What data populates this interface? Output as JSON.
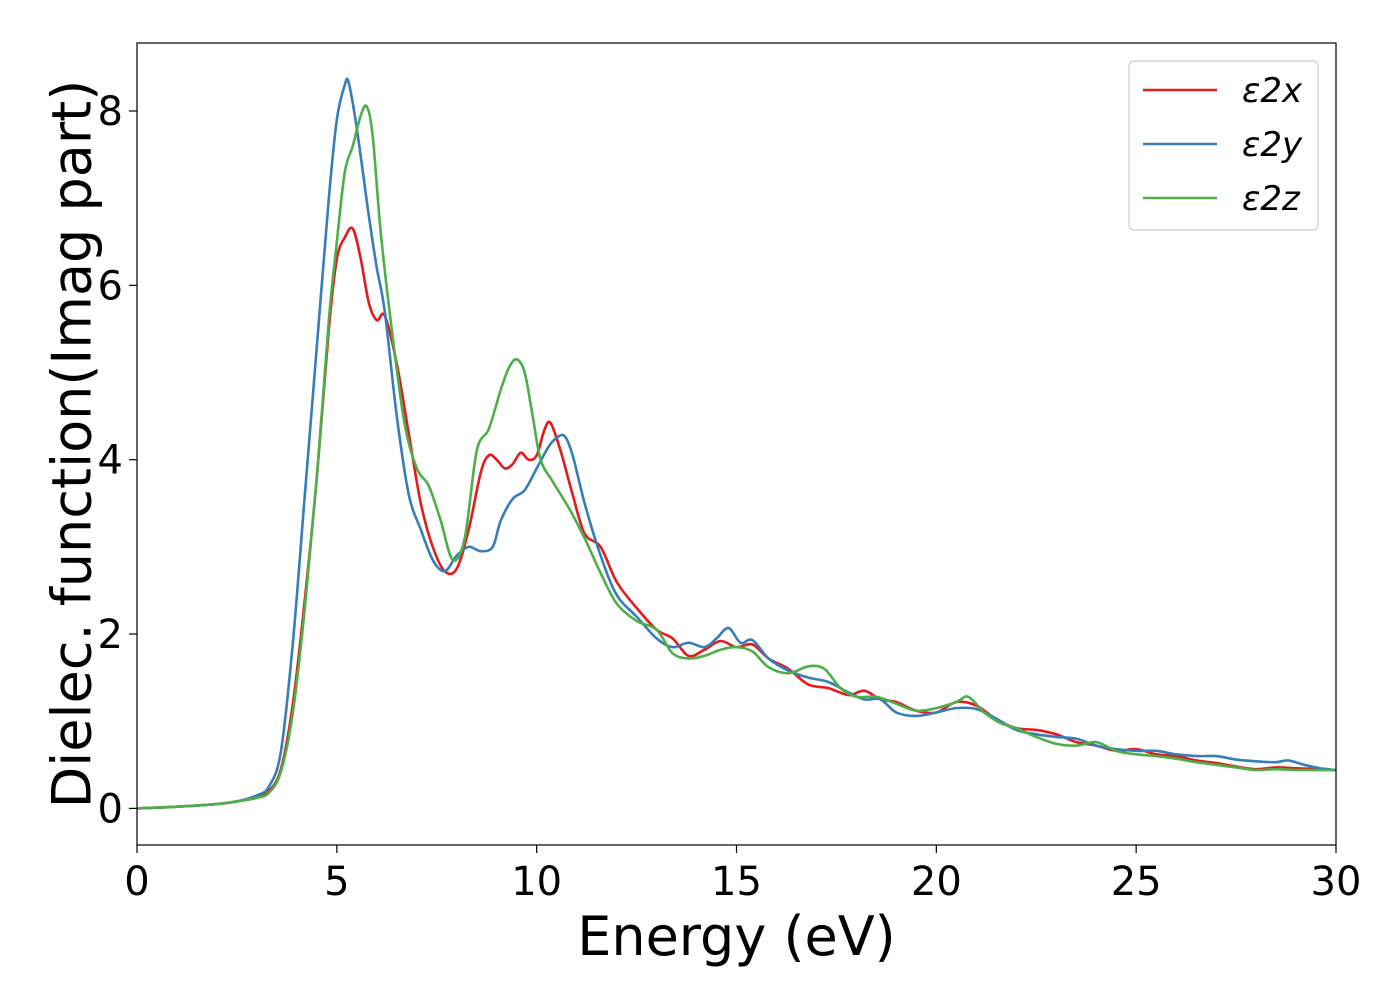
{
  "chart_data": {
    "type": "line",
    "title": "",
    "xlabel": "Energy (eV)",
    "ylabel": "Dielec. function(Imag part)",
    "xlim": [
      0,
      30
    ],
    "ylim": [
      -0.42,
      8.78
    ],
    "xticks": [
      0,
      5,
      10,
      15,
      20,
      25,
      30
    ],
    "yticks": [
      0,
      2,
      4,
      6,
      8
    ],
    "grid": false,
    "legend_position": "top-right",
    "series": [
      {
        "name": "ε2x",
        "color": "#e41a1c",
        "x": [
          0,
          1,
          2,
          2.5,
          3,
          3.3,
          3.6,
          3.9,
          4.2,
          4.5,
          4.8,
          5.0,
          5.2,
          5.4,
          5.6,
          5.8,
          6.0,
          6.2,
          6.5,
          6.8,
          7.1,
          7.4,
          7.7,
          8.0,
          8.3,
          8.6,
          8.8,
          9.0,
          9.2,
          9.4,
          9.6,
          9.8,
          10.0,
          10.2,
          10.35,
          10.6,
          10.9,
          11.2,
          11.6,
          12.0,
          12.5,
          13.0,
          13.4,
          13.8,
          14.2,
          14.6,
          15.0,
          15.4,
          15.8,
          16.3,
          16.8,
          17.3,
          17.8,
          18.2,
          18.6,
          19.0,
          19.5,
          20.0,
          20.5,
          21.0,
          21.5,
          22.0,
          22.5,
          23.0,
          23.5,
          24.0,
          24.5,
          25.0,
          25.5,
          26.0,
          26.5,
          27.0,
          27.5,
          28.0,
          28.5,
          29.0,
          29.5,
          30.0
        ],
        "y": [
          0,
          0.02,
          0.05,
          0.08,
          0.13,
          0.2,
          0.45,
          1.2,
          2.4,
          3.8,
          5.5,
          6.3,
          6.55,
          6.65,
          6.3,
          5.8,
          5.6,
          5.65,
          5.1,
          4.3,
          3.5,
          3.0,
          2.72,
          2.75,
          3.2,
          3.85,
          4.05,
          4.0,
          3.9,
          3.95,
          4.08,
          4.0,
          4.05,
          4.35,
          4.42,
          4.1,
          3.6,
          3.15,
          3.0,
          2.6,
          2.3,
          2.05,
          1.95,
          1.75,
          1.82,
          1.92,
          1.85,
          1.88,
          1.72,
          1.6,
          1.42,
          1.38,
          1.3,
          1.35,
          1.25,
          1.22,
          1.12,
          1.1,
          1.22,
          1.18,
          1.02,
          0.92,
          0.9,
          0.85,
          0.76,
          0.72,
          0.66,
          0.68,
          0.62,
          0.6,
          0.55,
          0.52,
          0.48,
          0.45,
          0.47,
          0.46,
          0.45,
          0.44
        ]
      },
      {
        "name": "ε2y",
        "color": "#377eb8",
        "x": [
          0,
          1,
          2,
          2.5,
          3,
          3.3,
          3.6,
          3.9,
          4.2,
          4.5,
          4.8,
          5.0,
          5.2,
          5.3,
          5.5,
          5.8,
          6.0,
          6.2,
          6.5,
          6.8,
          7.1,
          7.4,
          7.7,
          8.0,
          8.3,
          8.6,
          8.9,
          9.1,
          9.4,
          9.7,
          10.0,
          10.3,
          10.5,
          10.7,
          10.9,
          11.2,
          11.6,
          12.0,
          12.5,
          13.0,
          13.4,
          13.8,
          14.2,
          14.5,
          14.8,
          15.1,
          15.4,
          15.8,
          16.3,
          16.8,
          17.3,
          17.8,
          18.2,
          18.6,
          19.0,
          19.5,
          20.0,
          20.5,
          21.0,
          21.5,
          22.0,
          22.5,
          23.0,
          23.5,
          24.0,
          24.5,
          25.0,
          25.5,
          26.0,
          26.5,
          27.0,
          27.5,
          28.0,
          28.5,
          28.8,
          29.2,
          29.6,
          30.0
        ],
        "y": [
          0,
          0.02,
          0.05,
          0.08,
          0.15,
          0.25,
          0.65,
          1.9,
          3.6,
          5.3,
          7.0,
          7.9,
          8.3,
          8.32,
          7.8,
          6.8,
          6.2,
          5.7,
          4.5,
          3.6,
          3.2,
          2.85,
          2.72,
          2.9,
          3.0,
          2.95,
          3.0,
          3.3,
          3.55,
          3.65,
          3.9,
          4.15,
          4.25,
          4.27,
          4.05,
          3.5,
          2.9,
          2.45,
          2.2,
          1.95,
          1.85,
          1.9,
          1.85,
          1.95,
          2.07,
          1.9,
          1.93,
          1.72,
          1.58,
          1.5,
          1.45,
          1.33,
          1.25,
          1.25,
          1.1,
          1.06,
          1.1,
          1.15,
          1.14,
          1.03,
          0.9,
          0.85,
          0.82,
          0.8,
          0.72,
          0.68,
          0.66,
          0.66,
          0.62,
          0.6,
          0.6,
          0.56,
          0.54,
          0.53,
          0.55,
          0.5,
          0.46,
          0.44
        ]
      },
      {
        "name": "ε2z",
        "color": "#4daf4a",
        "x": [
          0,
          1,
          2,
          2.5,
          3,
          3.3,
          3.6,
          3.9,
          4.2,
          4.5,
          4.8,
          5.0,
          5.2,
          5.4,
          5.6,
          5.75,
          5.9,
          6.1,
          6.4,
          6.7,
          7.0,
          7.3,
          7.6,
          7.9,
          8.2,
          8.5,
          8.8,
          9.1,
          9.3,
          9.5,
          9.7,
          9.9,
          10.1,
          10.4,
          10.8,
          11.2,
          11.6,
          12.0,
          12.5,
          13.0,
          13.4,
          13.8,
          14.2,
          14.6,
          15.0,
          15.4,
          15.8,
          16.3,
          16.8,
          17.2,
          17.6,
          18.0,
          18.5,
          19.0,
          19.5,
          20.0,
          20.5,
          20.8,
          21.2,
          21.6,
          22.0,
          22.5,
          23.0,
          23.5,
          24.0,
          24.5,
          25.0,
          25.5,
          26.0,
          26.5,
          27.0,
          27.5,
          28.0,
          28.5,
          29.0,
          29.5,
          30.0
        ],
        "y": [
          0,
          0.02,
          0.05,
          0.08,
          0.12,
          0.18,
          0.42,
          1.1,
          2.3,
          3.8,
          5.6,
          6.5,
          7.3,
          7.6,
          7.95,
          8.05,
          7.7,
          6.6,
          5.4,
          4.4,
          3.9,
          3.7,
          3.3,
          2.85,
          3.1,
          4.1,
          4.35,
          4.8,
          5.05,
          5.15,
          5.0,
          4.5,
          4.0,
          3.75,
          3.45,
          3.1,
          2.7,
          2.35,
          2.15,
          2.05,
          1.78,
          1.72,
          1.75,
          1.82,
          1.85,
          1.8,
          1.62,
          1.55,
          1.63,
          1.6,
          1.38,
          1.28,
          1.28,
          1.2,
          1.12,
          1.15,
          1.22,
          1.28,
          1.1,
          0.98,
          0.92,
          0.82,
          0.74,
          0.72,
          0.76,
          0.66,
          0.62,
          0.6,
          0.57,
          0.53,
          0.5,
          0.47,
          0.44,
          0.45,
          0.44,
          0.44,
          0.44
        ]
      }
    ]
  }
}
